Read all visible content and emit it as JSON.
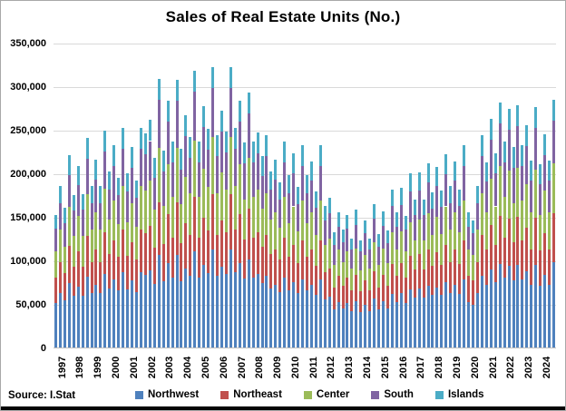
{
  "footer": {
    "source_note": "Source: I.Stat"
  },
  "chart_data": {
    "type": "bar",
    "stacked": true,
    "title": "Sales of Real Estate Units (No.)",
    "xlabel": "",
    "ylabel": "",
    "ylim": [
      0,
      350000
    ],
    "ytick_step": 50000,
    "y_tick_labels": [
      "0",
      "50,000",
      "100,000",
      "150,000",
      "200,000",
      "250,000",
      "300,000",
      "350,000"
    ],
    "grid": "horizontal",
    "legend_position": "bottom",
    "x_years": [
      1997,
      1998,
      1999,
      2000,
      2001,
      2002,
      2003,
      2004,
      2005,
      2006,
      2007,
      2008,
      2009,
      2010,
      2011,
      2012,
      2013,
      2014,
      2015,
      2016,
      2017,
      2018,
      2019,
      2020,
      2021,
      2022,
      2023,
      2024
    ],
    "quarters_per_year": 4,
    "x_note": "4 quarterly bars per labelled year, 1997Q1 - 2024Q4",
    "series": [
      {
        "name": "Northwest",
        "color": "#4F81BD",
        "values": [
          51000,
          62000,
          54000,
          74000,
          59000,
          70000,
          59000,
          81000,
          62000,
          72000,
          62000,
          84000,
          68000,
          78000,
          66000,
          86000,
          67000,
          77000,
          64000,
          86000,
          83000,
          89000,
          73000,
          106000,
          76000,
          97000,
          80000,
          106000,
          76000,
          91000,
          82000,
          110000,
          80000,
          95000,
          85000,
          112000,
          82000,
          93000,
          84000,
          112000,
          86000,
          97000,
          79000,
          101000,
          80000,
          84000,
          74000,
          82000,
          68000,
          72000,
          64000,
          80000,
          66000,
          75000,
          62000,
          78000,
          66000,
          72000,
          60000,
          78000,
          55000,
          58000,
          44000,
          52000,
          45000,
          51000,
          42000,
          53000,
          41000,
          49000,
          42000,
          56000,
          44000,
          53000,
          45000,
          61000,
          52000,
          62000,
          51000,
          67000,
          57000,
          68000,
          57000,
          71000,
          60000,
          69000,
          60000,
          75000,
          62000,
          72000,
          61000,
          78000,
          52000,
          49000,
          62000,
          82000,
          72000,
          90000,
          75000,
          96000,
          80000,
          94000,
          77000,
          95000,
          78000,
          87000,
          72000,
          95000,
          71000,
          83000,
          72000,
          98000
        ]
      },
      {
        "name": "Northeast",
        "color": "#C0504D",
        "values": [
          29000,
          36000,
          31000,
          43000,
          34000,
          40000,
          34000,
          47000,
          36000,
          41000,
          36000,
          48000,
          39000,
          45000,
          38000,
          49000,
          38000,
          44000,
          37000,
          49000,
          48000,
          51000,
          42000,
          61000,
          43000,
          56000,
          46000,
          61000,
          44000,
          52000,
          47000,
          63000,
          46000,
          54000,
          49000,
          64000,
          47000,
          53000,
          48000,
          64000,
          49000,
          56000,
          45000,
          58000,
          46000,
          48000,
          42000,
          47000,
          39000,
          41000,
          37000,
          46000,
          38000,
          43000,
          35000,
          45000,
          38000,
          41000,
          34000,
          45000,
          31000,
          33000,
          25000,
          30000,
          26000,
          29000,
          24000,
          30000,
          24000,
          28000,
          24000,
          32000,
          25000,
          30000,
          26000,
          35000,
          30000,
          35000,
          29000,
          38000,
          33000,
          39000,
          33000,
          41000,
          34000,
          40000,
          35000,
          43000,
          36000,
          41000,
          35000,
          45000,
          30000,
          28000,
          36000,
          47000,
          41000,
          51000,
          43000,
          55000,
          46000,
          54000,
          44000,
          55000,
          45000,
          50000,
          41000,
          54000,
          40000,
          48000,
          41000,
          56000
        ]
      },
      {
        "name": "Center",
        "color": "#9BBB59",
        "values": [
          30000,
          37000,
          31000,
          44000,
          35000,
          41000,
          35000,
          48000,
          37000,
          42000,
          37000,
          50000,
          40000,
          46000,
          38000,
          50000,
          39000,
          45000,
          38000,
          50000,
          49000,
          52000,
          43000,
          62000,
          44000,
          57000,
          47000,
          62000,
          45000,
          53000,
          48000,
          65000,
          47000,
          56000,
          50000,
          66000,
          48000,
          55000,
          49000,
          66000,
          50000,
          57000,
          46000,
          59000,
          47000,
          49000,
          43000,
          48000,
          40000,
          42000,
          37000,
          47000,
          39000,
          44000,
          36000,
          46000,
          39000,
          42000,
          35000,
          46000,
          32000,
          34000,
          26000,
          31000,
          27000,
          30000,
          25000,
          31000,
          24000,
          29000,
          25000,
          33000,
          26000,
          31000,
          26000,
          36000,
          31000,
          36000,
          30000,
          39000,
          33000,
          40000,
          33000,
          42000,
          35000,
          41000,
          35000,
          44000,
          37000,
          42000,
          36000,
          46000,
          31000,
          29000,
          37000,
          48000,
          42000,
          53000,
          44000,
          57000,
          47000,
          55000,
          45000,
          56000,
          46000,
          51000,
          42000,
          55000,
          41000,
          49000,
          42000,
          57000
        ]
      },
      {
        "name": "South",
        "color": "#8064A2",
        "values": [
          26000,
          31000,
          27000,
          37000,
          29000,
          35000,
          30000,
          41000,
          31000,
          38000,
          31000,
          43000,
          34000,
          39000,
          33000,
          43000,
          35000,
          40000,
          33000,
          43000,
          42000,
          45000,
          37000,
          55000,
          39000,
          49000,
          40000,
          54000,
          39000,
          47000,
          41000,
          56000,
          40000,
          48000,
          43000,
          56000,
          43000,
          47000,
          43000,
          56000,
          43000,
          49000,
          41000,
          51000,
          40000,
          42000,
          38000,
          43000,
          34000,
          38000,
          32000,
          40000,
          34000,
          38000,
          32000,
          39000,
          34000,
          37000,
          31000,
          39000,
          28000,
          29000,
          23000,
          26000,
          23000,
          26000,
          21000,
          27000,
          21000,
          25000,
          21000,
          27000,
          21000,
          26000,
          23000,
          30000,
          26000,
          31000,
          25000,
          35000,
          29000,
          33000,
          29000,
          36000,
          30000,
          35000,
          31000,
          37000,
          31000,
          37000,
          30000,
          39000,
          26000,
          25000,
          31000,
          43000,
          36000,
          45000,
          38000,
          49000,
          40000,
          47000,
          40000,
          48000,
          39000,
          43000,
          37000,
          48000,
          36000,
          41000,
          37000,
          49000
        ]
      },
      {
        "name": "Islands",
        "color": "#4BACC6",
        "values": [
          16000,
          19000,
          17000,
          23000,
          18000,
          22000,
          18000,
          24000,
          19000,
          23000,
          19000,
          24000,
          21000,
          24000,
          20000,
          24000,
          21000,
          24000,
          20000,
          24000,
          24000,
          24000,
          23000,
          24000,
          24000,
          24000,
          24000,
          24000,
          24000,
          24000,
          24000,
          24000,
          24000,
          24000,
          24000,
          24000,
          24000,
          24000,
          24000,
          24000,
          24000,
          24000,
          24000,
          24000,
          24000,
          24000,
          23000,
          24000,
          21000,
          23000,
          20000,
          24000,
          21000,
          23000,
          19000,
          24000,
          21000,
          22000,
          19000,
          24000,
          17000,
          18000,
          14000,
          16000,
          14000,
          16000,
          13000,
          17000,
          13000,
          15000,
          13000,
          17000,
          14000,
          16000,
          14000,
          19000,
          16000,
          19000,
          16000,
          21000,
          18000,
          21000,
          18000,
          22000,
          19000,
          22000,
          19000,
          23000,
          19000,
          22000,
          19000,
          24000,
          16000,
          15000,
          19000,
          24000,
          22000,
          24000,
          23000,
          24000,
          24000,
          24000,
          24000,
          24000,
          24000,
          24000,
          23000,
          24000,
          22000,
          24000,
          23000,
          24000
        ]
      }
    ]
  }
}
